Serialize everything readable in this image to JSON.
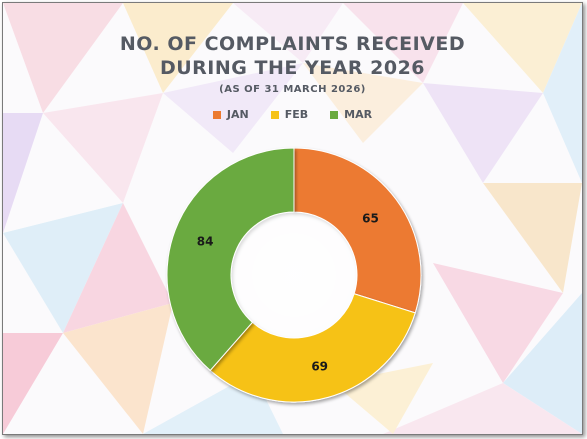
{
  "chart_data": {
    "type": "pie",
    "title_line1": "NO. OF COMPLAINTS RECEIVED",
    "title_line2": "DURING THE YEAR 2026",
    "subtitle": "(AS OF 31 MARCH 2026)",
    "categories": [
      "JAN",
      "FEB",
      "MAR"
    ],
    "values": [
      65,
      69,
      84
    ],
    "colors": [
      "#ec7a30",
      "#f6c218",
      "#6aaa3f"
    ],
    "legend_position": "top",
    "style": "donut"
  }
}
